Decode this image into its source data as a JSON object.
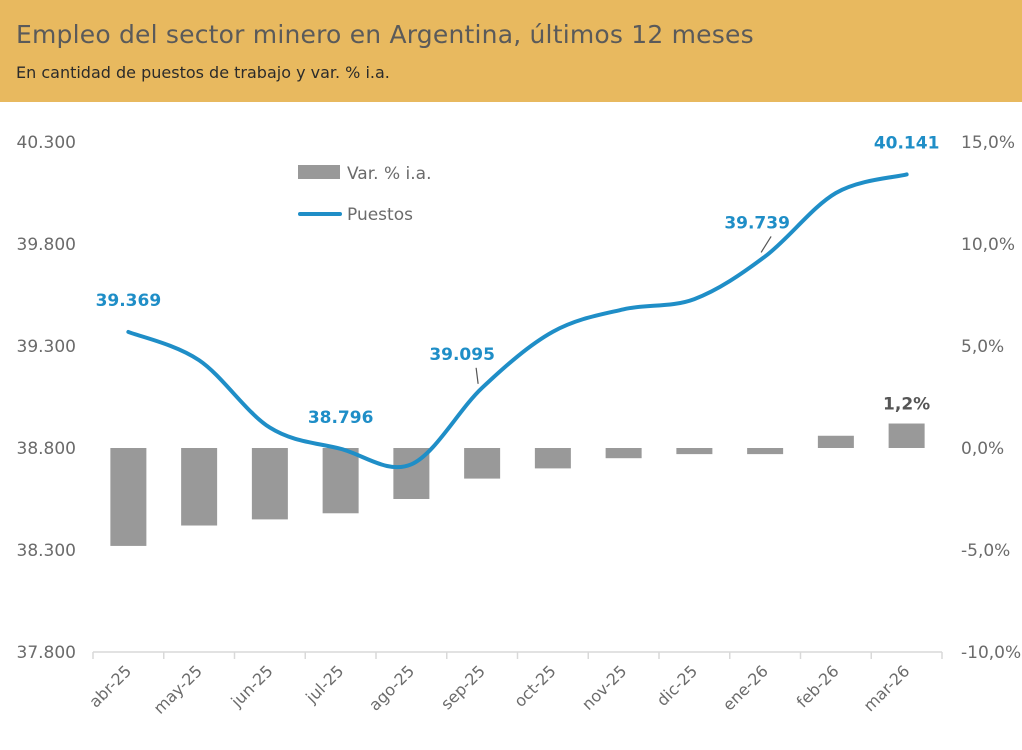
{
  "header": {
    "title": "Empleo del sector minero en Argentina, últimos 12 meses",
    "subtitle": "En cantidad de puestos de trabajo y var. % i.a."
  },
  "colors": {
    "header_bg": "#e8b95f",
    "line": "#1f8ec7",
    "bar": "#999999",
    "bar_label": "#555555"
  },
  "chart_data": {
    "type": "bar+line",
    "title": "Empleo del sector minero en Argentina, últimos 12 meses",
    "subtitle": "En cantidad de puestos de trabajo y var. % i.a.",
    "categories": [
      "abr-25",
      "may-25",
      "jun-25",
      "jul-25",
      "ago-25",
      "sep-25",
      "oct-25",
      "nov-25",
      "dic-25",
      "ene-26",
      "feb-26",
      "mar-26"
    ],
    "series": [
      {
        "name": "Var. % i.a.",
        "kind": "bar",
        "axis": "right",
        "values": [
          -4.8,
          -3.8,
          -3.5,
          -3.2,
          -2.5,
          -1.5,
          -1.0,
          -0.5,
          -0.3,
          -0.3,
          0.6,
          1.2
        ]
      },
      {
        "name": "Puestos",
        "kind": "line",
        "axis": "left",
        "values": [
          39369,
          39230,
          38900,
          38796,
          38720,
          39095,
          39370,
          39480,
          39530,
          39739,
          40050,
          40141
        ]
      }
    ],
    "left_axis": {
      "ylim": [
        37800,
        40300
      ],
      "ticks": [
        37800,
        38300,
        38800,
        39300,
        39800,
        40300
      ],
      "tick_labels": [
        "37.800",
        "38.300",
        "38.800",
        "39.300",
        "39.800",
        "40.300"
      ]
    },
    "right_axis": {
      "ylim": [
        -10,
        15
      ],
      "ticks": [
        -10,
        -5,
        0,
        5,
        10,
        15
      ],
      "tick_labels": [
        "-10,0%",
        "-5,0%",
        "0,0%",
        "5,0%",
        "10,0%",
        "15,0%"
      ]
    },
    "data_labels": [
      {
        "series": "Puestos",
        "index": 0,
        "text": "39.369"
      },
      {
        "series": "Puestos",
        "index": 3,
        "text": "38.796"
      },
      {
        "series": "Puestos",
        "index": 5,
        "text": "39.095"
      },
      {
        "series": "Puestos",
        "index": 9,
        "text": "39.739"
      },
      {
        "series": "Puestos",
        "index": 11,
        "text": "40.141"
      },
      {
        "series": "Var. % i.a.",
        "index": 11,
        "text": "1,2%"
      }
    ],
    "legend": {
      "position": "top-left",
      "entries": [
        "Var. % i.a.",
        "Puestos"
      ]
    },
    "grid": false
  }
}
